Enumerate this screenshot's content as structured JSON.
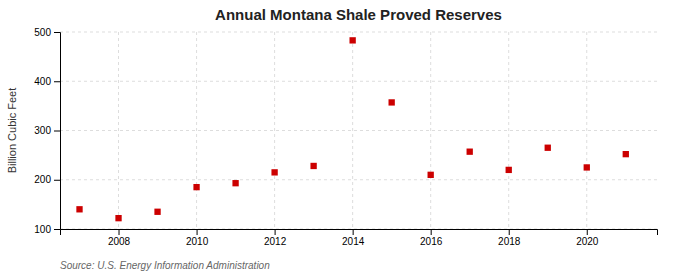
{
  "chart_data": {
    "type": "scatter",
    "title": "Annual Montana Shale Proved Reserves",
    "ylabel": "Billion Cubic Feet",
    "annotations": [
      "Source: U.S. Energy Information Administration"
    ],
    "x": [
      2007,
      2008,
      2009,
      2010,
      2011,
      2012,
      2013,
      2014,
      2015,
      2016,
      2017,
      2018,
      2019,
      2020,
      2021
    ],
    "values": [
      140,
      122,
      135,
      185,
      193,
      215,
      228,
      483,
      357,
      210,
      257,
      220,
      265,
      225,
      252
    ],
    "color": "#cc0000",
    "marker": "square",
    "xlim": [
      2006.5,
      2021.8
    ],
    "xticks": [
      2008,
      2010,
      2012,
      2014,
      2016,
      2018,
      2020
    ],
    "ylim": [
      100,
      500
    ],
    "yticks": [
      100,
      200,
      300,
      400,
      500
    ],
    "grid": true
  }
}
